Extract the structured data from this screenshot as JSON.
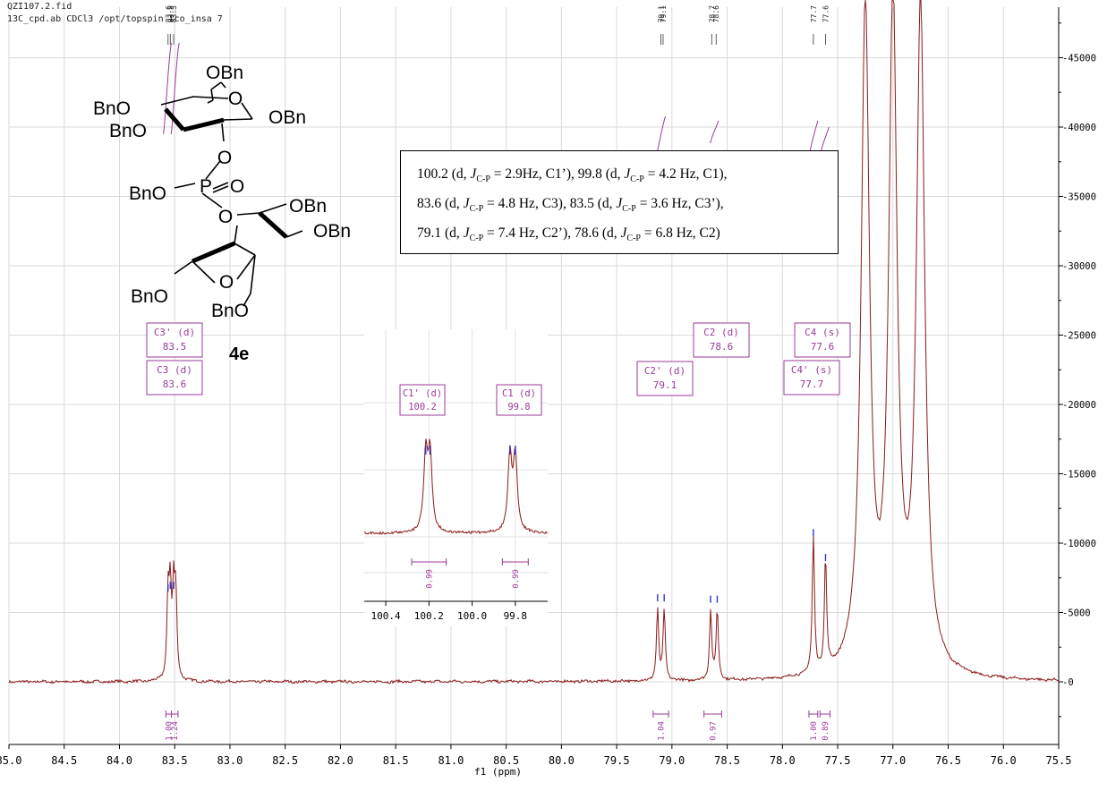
{
  "header": {
    "line1": "QZI107.2.fid",
    "line2": "13C_cpd.ab CDCl3 /opt/topspin lco_insa 7"
  },
  "compound": {
    "id": "4e",
    "groups": [
      "OBn",
      "BnO",
      "BnO",
      "OBn",
      "BnO",
      "OBn",
      "OBn",
      "BnO",
      "BnO"
    ],
    "ring_atoms": [
      "O",
      "O",
      "O",
      "O",
      "O",
      "P"
    ]
  },
  "coupling_box": {
    "lines": [
      "100.2 (d, J_C-P = 2.9Hz, C1’), 99.8 (d, J_C-P = 4.2 Hz, C1),",
      "83.6 (d, J_C-P = 4.8 Hz, C3), 83.5 (d, J_C-P = 3.6 Hz, C3’),",
      "79.1 (d, J_C-P = 7.4 Hz, C2’), 78.6 (d, J_C-P = 6.8 Hz, C2)"
    ]
  },
  "colors": {
    "spectrum": "#8b1a1a",
    "peak_label": "#9a3a9a",
    "integral": "#9a3a9a",
    "peak_tick": "#3333cc",
    "grid": "#d9d9d9",
    "frame": "#000000"
  },
  "chart_data": [
    {
      "type": "line",
      "title": "",
      "xlabel": "f1 (ppm)",
      "ylabel": "",
      "x_reversed": true,
      "xlim": [
        85.0,
        75.5
      ],
      "ylim": [
        -4500,
        47000
      ],
      "grid": true,
      "x_ticks": [
        "85.0",
        "84.5",
        "84.0",
        "83.5",
        "83.0",
        "82.5",
        "82.0",
        "81.5",
        "81.0",
        "80.5",
        "80.0",
        "79.5",
        "79.0",
        "78.5",
        "78.0",
        "77.5",
        "77.0",
        "76.5",
        "76.0",
        "75.5"
      ],
      "y_ticks": [
        0,
        5000,
        10000,
        15000,
        20000,
        25000,
        30000,
        35000,
        40000,
        45000
      ],
      "y_axis_side": "right",
      "peaks": [
        {
          "ppm": 83.56,
          "height": 5800
        },
        {
          "ppm": 83.54,
          "height": 6000
        },
        {
          "ppm": 83.51,
          "height": 6000
        },
        {
          "ppm": 83.49,
          "height": 5800
        },
        {
          "ppm": 79.13,
          "height": 5100
        },
        {
          "ppm": 79.07,
          "height": 5100
        },
        {
          "ppm": 78.65,
          "height": 5000
        },
        {
          "ppm": 78.59,
          "height": 5000
        },
        {
          "ppm": 77.72,
          "height": 9800
        },
        {
          "ppm": 77.61,
          "height": 8000
        },
        {
          "ppm": 77.25,
          "height": 48000
        },
        {
          "ppm": 77.0,
          "height": 48000
        },
        {
          "ppm": 76.75,
          "height": 48000
        }
      ],
      "peak_picks": [
        "83.6",
        "83.5",
        "83.5",
        "79.1",
        "79.1",
        "78.7",
        "78.6",
        "77.7",
        "77.6"
      ],
      "assignments": [
        {
          "name": "C3' (d)",
          "value": "83.5"
        },
        {
          "name": "C3 (d)",
          "value": "83.6"
        },
        {
          "name": "C2' (d)",
          "value": "79.1"
        },
        {
          "name": "C2 (d)",
          "value": "78.6"
        },
        {
          "name": "C4 (s)",
          "value": "77.6"
        },
        {
          "name": "C4' (s)",
          "value": "77.7"
        }
      ],
      "integrals": [
        {
          "ppm_range": [
            83.58,
            83.53
          ],
          "value": "1.00"
        },
        {
          "ppm_range": [
            83.53,
            83.47
          ],
          "value": "1.24"
        },
        {
          "ppm_range": [
            79.17,
            79.03
          ],
          "value": "1.04"
        },
        {
          "ppm_range": [
            78.71,
            78.55
          ],
          "value": "0.97"
        },
        {
          "ppm_range": [
            77.76,
            77.68
          ],
          "value": "1.00"
        },
        {
          "ppm_range": [
            77.66,
            77.57
          ],
          "value": "0.89"
        }
      ]
    },
    {
      "type": "line",
      "title": "",
      "x_reversed": true,
      "xlim": [
        100.5,
        99.65
      ],
      "x_ticks": [
        "100.4",
        "100.2",
        "100.0",
        "99.8"
      ],
      "peaks": [
        {
          "ppm": 100.215,
          "height": 1.0
        },
        {
          "ppm": 100.195,
          "height": 1.0
        },
        {
          "ppm": 99.825,
          "height": 1.0
        },
        {
          "ppm": 99.8,
          "height": 1.0
        }
      ],
      "assignments": [
        {
          "name": "C1' (d)",
          "value": "100.2"
        },
        {
          "name": "C1 (d)",
          "value": "99.8"
        }
      ],
      "integrals": [
        {
          "ppm_range": [
            100.28,
            100.12
          ],
          "value": "0.99"
        },
        {
          "ppm_range": [
            99.86,
            99.74
          ],
          "value": "0.99"
        }
      ]
    }
  ]
}
